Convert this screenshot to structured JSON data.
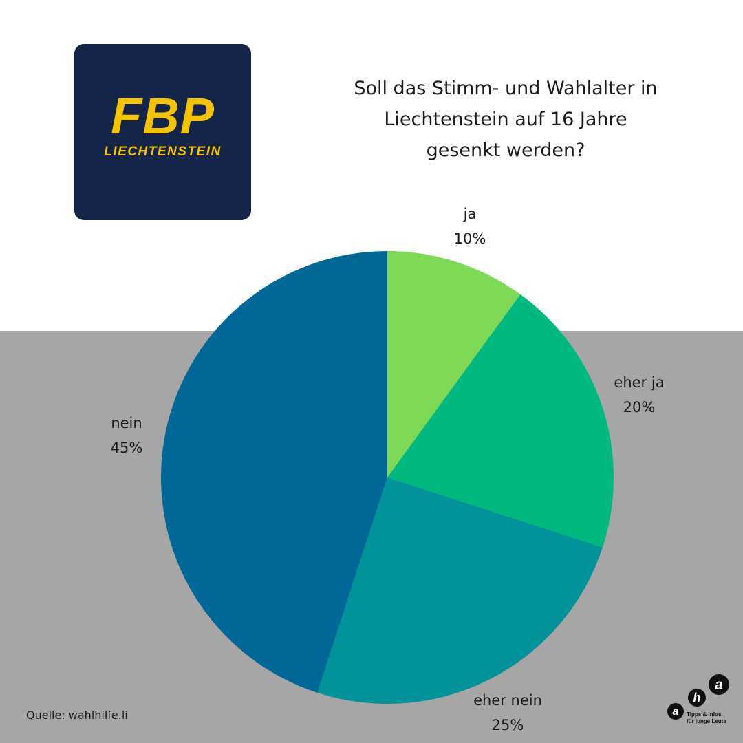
{
  "logo": {
    "main": "FBP",
    "sub": "LIECHTENSTEIN",
    "bg": "#15254a",
    "fg": "#f5c400"
  },
  "title_lines": [
    "Soll das Stimm- und Wahlalter in",
    "Liechtenstein auf 16 Jahre",
    "gesenkt werden?"
  ],
  "colors": {
    "top_bg": "#ffffff",
    "bottom_bg": "#a6a6a6"
  },
  "chart_data": {
    "type": "pie",
    "title": "Soll das Stimm- und Wahlalter in Liechtenstein auf 16 Jahre gesenkt werden?",
    "direction": "clockwise from top",
    "slices": [
      {
        "label": "ja",
        "value": 10,
        "display": "10%",
        "color": "#7ed957"
      },
      {
        "label": "eher ja",
        "value": 20,
        "display": "20%",
        "color": "#00b97e"
      },
      {
        "label": "eher nein",
        "value": 25,
        "display": "25%",
        "color": "#00939a"
      },
      {
        "label": "nein",
        "value": 45,
        "display": "45%",
        "color": "#006896"
      }
    ]
  },
  "source": "Quelle: wahlhilfe.li",
  "footer_logo": {
    "letters": [
      "a",
      "h",
      "a"
    ],
    "line1": "Tipps & Infos",
    "line2": "für junge Leute"
  }
}
